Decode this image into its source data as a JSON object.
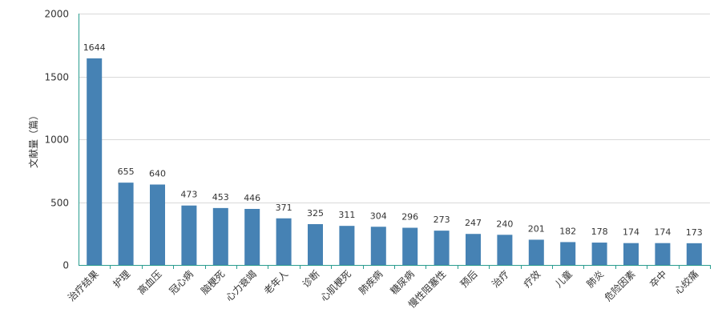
{
  "chart_data": {
    "type": "bar",
    "ylabel": "文献量（篇）",
    "ylim": [
      0,
      2000
    ],
    "yticks": [
      0,
      500,
      1000,
      1500,
      2000
    ],
    "grid": true,
    "bar_color": "#4682b4",
    "categories": [
      "治疗结果",
      "护理",
      "高血压",
      "冠心病",
      "脑梗死",
      "心力衰竭",
      "老年人",
      "诊断",
      "心肌梗死",
      "肺疾病",
      "糖尿病",
      "慢性阻塞性",
      "预后",
      "治疗",
      "疗效",
      "儿童",
      "肺炎",
      "危险因素",
      "卒中",
      "心绞痛"
    ],
    "values": [
      1644,
      655,
      640,
      473,
      453,
      446,
      371,
      325,
      311,
      304,
      296,
      273,
      247,
      240,
      201,
      182,
      178,
      174,
      174,
      173
    ]
  }
}
